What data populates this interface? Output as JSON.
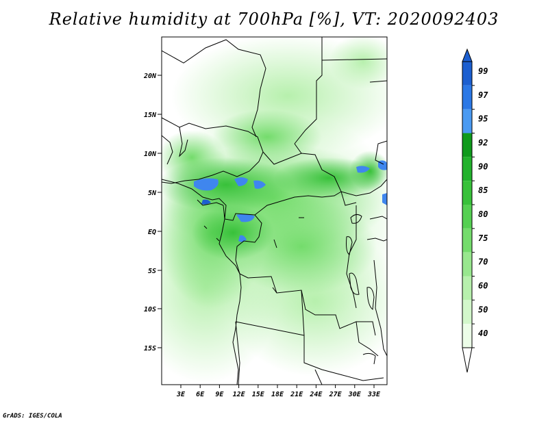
{
  "title": "Relative humidity at 700hPa [%], VT: 2020092403",
  "credit": "GrADS: IGES/COLA",
  "map": {
    "lat_ticks": [
      "20N",
      "15N",
      "10N",
      "5N",
      "EQ",
      "5S",
      "10S",
      "15S"
    ],
    "lon_ticks": [
      "3E",
      "6E",
      "9E",
      "12E",
      "15E",
      "18E",
      "21E",
      "24E",
      "27E",
      "30E",
      "33E"
    ]
  },
  "colorbar": {
    "labels": [
      "99",
      "97",
      "95",
      "92",
      "90",
      "85",
      "80",
      "75",
      "70",
      "60",
      "50",
      "40"
    ],
    "colors": [
      "#1c5fd0",
      "#2b78e6",
      "#4a9af2",
      "#0f9a1c",
      "#22b22c",
      "#38c13a",
      "#55d052",
      "#74dc6c",
      "#98e78e",
      "#b7f0ad",
      "#d3f7cb",
      "#ecfde8"
    ]
  }
}
